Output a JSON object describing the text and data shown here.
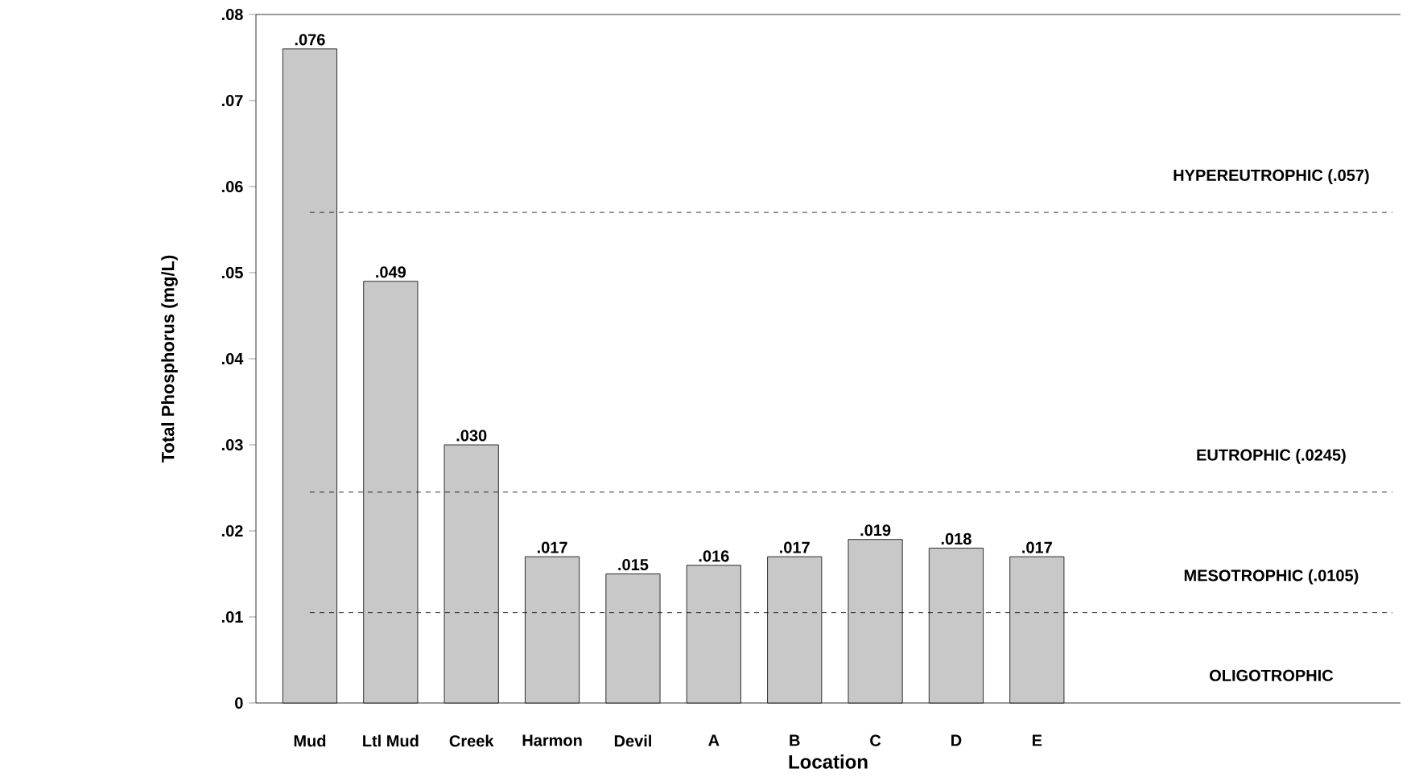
{
  "chart_data": {
    "type": "bar",
    "xlabel": "Location",
    "ylabel": "Total Phosphorus (mg/L)",
    "categories": [
      "Mud",
      "Ltl  Mud",
      "Creek",
      "Harmon",
      "Devil",
      "A",
      "B",
      "C",
      "D",
      "E"
    ],
    "values": [
      0.076,
      0.049,
      0.03,
      0.017,
      0.015,
      0.016,
      0.017,
      0.019,
      0.018,
      0.017
    ],
    "value_labels": [
      ".076",
      ".049",
      ".030",
      ".017",
      ".015",
      ".016",
      ".017",
      ".019",
      ".018",
      ".017"
    ],
    "color": "#c8c8c8",
    "ylim": [
      0,
      0.08
    ],
    "yticks": [
      0,
      {
        "value": 0.01,
        "label": ".01"
      },
      {
        "value": 0.02,
        "label": ".02"
      },
      {
        "value": 0.03,
        "label": ".03"
      },
      {
        "value": 0.04,
        "label": ".04"
      },
      {
        "value": 0.05,
        "label": ".05"
      },
      {
        "value": 0.06,
        "label": ".06"
      },
      {
        "value": 0.07,
        "label": ".07"
      },
      {
        "value": 0.08,
        "label": ".08"
      }
    ],
    "ref_lines": [
      {
        "axis": "y",
        "value": 0.057,
        "label": "HYPEREUTROPHIC (.057)",
        "line_style": "dashed"
      },
      {
        "axis": "y",
        "value": 0.0245,
        "label": "EUTROPHIC (.0245)",
        "line_style": "dashed"
      },
      {
        "axis": "y",
        "value": 0.0105,
        "label": "MESOTROPHIC (.0105)",
        "line_style": "dashed"
      }
    ],
    "annotations": [
      "OLIGOTROPHIC"
    ],
    "grid": false
  }
}
